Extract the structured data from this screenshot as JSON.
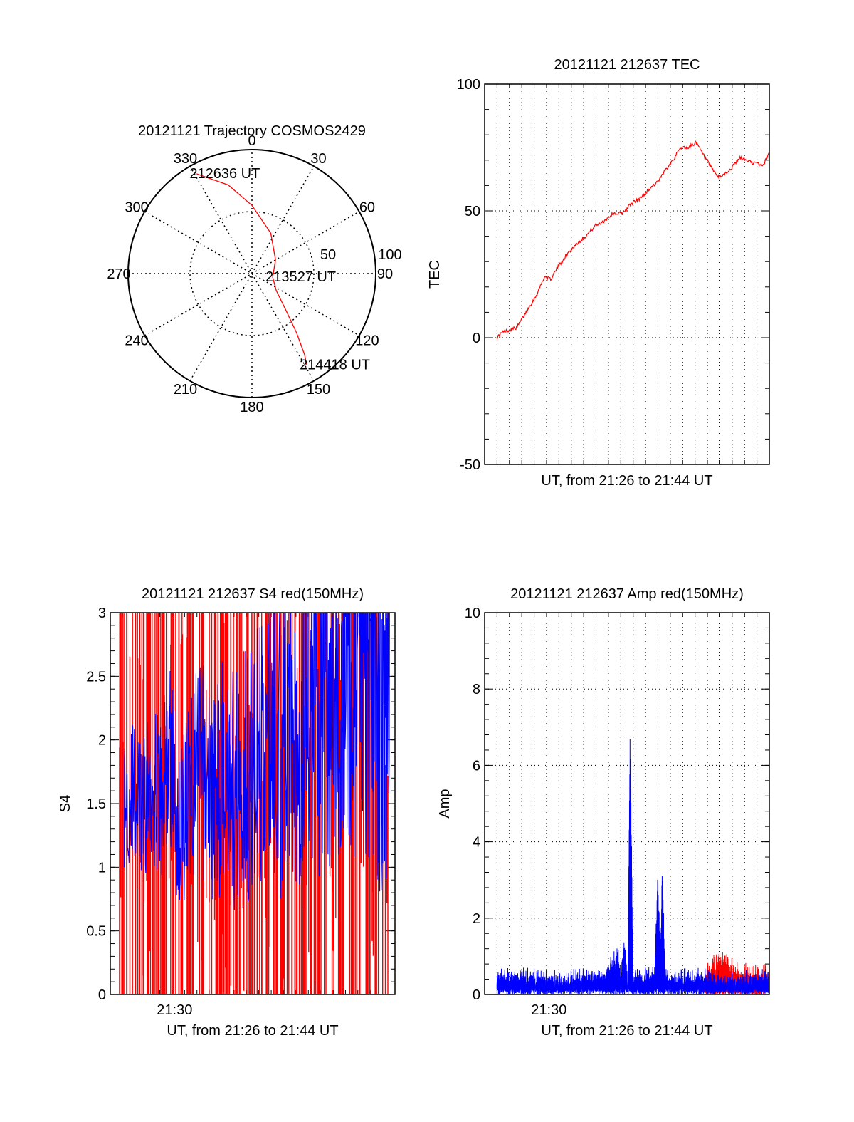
{
  "chart_data": [
    {
      "type": "polar",
      "title": "20121121 Trajectory COSMOS2429",
      "azimuth_labels": [
        "0",
        "30",
        "60",
        "90",
        "120",
        "150",
        "180",
        "210",
        "240",
        "270",
        "300",
        "330"
      ],
      "radial_ticks": [
        50,
        100
      ],
      "radial_max": 100,
      "series": [
        {
          "color": "#ff0000",
          "points": [
            {
              "az": 331,
              "r": 92
            },
            {
              "az": 345,
              "r": 74
            },
            {
              "az": 0,
              "r": 55
            },
            {
              "az": 25,
              "r": 36
            },
            {
              "az": 60,
              "r": 22
            },
            {
              "az": 100,
              "r": 17
            },
            {
              "az": 125,
              "r": 24
            },
            {
              "az": 137,
              "r": 40
            },
            {
              "az": 143,
              "r": 60
            },
            {
              "az": 147,
              "r": 78
            },
            {
              "az": 149,
              "r": 86
            }
          ]
        }
      ],
      "annotations": [
        {
          "text": "212636 UT",
          "az": 331,
          "r": 92
        },
        {
          "text": "213527 UT",
          "az": 100,
          "r": 17
        },
        {
          "text": "214418 UT",
          "az": 149,
          "r": 86
        }
      ]
    },
    {
      "type": "line",
      "title": "20121121 212637 TEC",
      "xlabel": "UT, from 21:26 to 21:44 UT",
      "ylabel": "TEC",
      "xlim": [
        21.43,
        21.74
      ],
      "ylim": [
        -50,
        100
      ],
      "yticks": [
        "-50",
        "0",
        "50",
        "100"
      ],
      "grid": true,
      "series": [
        {
          "color": "#ff0000",
          "x": [
            21.4433,
            21.449,
            21.4567,
            21.465,
            21.475,
            21.4867,
            21.495,
            21.5017,
            21.51,
            21.52,
            21.53,
            21.54,
            21.55,
            21.56,
            21.57,
            21.58,
            21.59,
            21.6,
            21.61,
            21.62,
            21.6283,
            21.6367,
            21.6433,
            21.6517,
            21.66,
            21.6683,
            21.675,
            21.685,
            21.6967,
            21.7083,
            21.7217,
            21.7333,
            21.74
          ],
          "y": [
            0,
            2,
            3,
            4,
            10,
            17,
            24,
            23,
            28,
            33,
            37,
            40,
            44,
            46,
            49,
            49,
            53,
            55,
            59,
            62,
            67,
            71,
            75,
            75,
            77,
            72,
            68,
            63,
            66,
            71,
            69,
            68,
            73
          ]
        }
      ]
    },
    {
      "type": "line",
      "title": "20121121 212637 S4 red(150MHz)",
      "xlabel": "UT, from 21:26 to 21:44 UT",
      "ylabel": "S4",
      "xlim": [
        21.43,
        21.74
      ],
      "ylim": [
        0,
        3
      ],
      "yticks": [
        "0",
        "0.5",
        "1",
        "1.5",
        "2",
        "2.5",
        "3"
      ],
      "xtick_labels": [
        {
          "x": 21.5,
          "label": "21:30"
        }
      ],
      "series": [
        {
          "color": "#ff0000",
          "note": "dense vertical traces spanning 0–3",
          "x": [
            21.44,
            21.46,
            21.48,
            21.5,
            21.52,
            21.54,
            21.56,
            21.58,
            21.6,
            21.62,
            21.64,
            21.66,
            21.68,
            21.7,
            21.72,
            21.735
          ],
          "y": [
            1.5,
            1.7,
            1.6,
            1.8,
            1.5,
            1.4,
            1.7,
            1.6,
            1.9,
            2.2,
            2.0,
            2.3,
            2.1,
            2.4,
            2.6,
            2.5
          ]
        },
        {
          "color": "#0000ff",
          "x": [
            21.445,
            21.455,
            21.465,
            21.475,
            21.485,
            21.495,
            21.505,
            21.515,
            21.525,
            21.535,
            21.545,
            21.555,
            21.565,
            21.575,
            21.585,
            21.595,
            21.605,
            21.615,
            21.625,
            21.635,
            21.645,
            21.655,
            21.665,
            21.675,
            21.685,
            21.695,
            21.705,
            21.715,
            21.725,
            21.735
          ],
          "y": [
            1.5,
            1.6,
            1.4,
            1.7,
            1.5,
            1.9,
            1.3,
            1.6,
            1.8,
            1.7,
            1.5,
            1.9,
            1.6,
            1.8,
            1.7,
            1.9,
            2.1,
            1.9,
            2.2,
            2.0,
            2.3,
            2.2,
            2.4,
            2.3,
            2.6,
            2.4,
            2.5,
            2.6,
            2.3,
            2.4
          ]
        }
      ]
    },
    {
      "type": "line",
      "title": "20121121 212637 Amp red(150MHz)",
      "xlabel": "UT, from 21:26 to 21:44 UT",
      "ylabel": "Amp",
      "xlim": [
        21.43,
        21.74
      ],
      "ylim": [
        0,
        10
      ],
      "yticks": [
        "0",
        "2",
        "4",
        "6",
        "8",
        "10"
      ],
      "xtick_labels": [
        {
          "x": 21.5,
          "label": "21:30"
        }
      ],
      "grid": true,
      "series": [
        {
          "color": "#0000ff",
          "x": [
            21.4433,
            21.47,
            21.5,
            21.53,
            21.56,
            21.575,
            21.578,
            21.582,
            21.586,
            21.5883,
            21.5917,
            21.6,
            21.615,
            21.6183,
            21.6217,
            21.6233,
            21.6267,
            21.6317,
            21.66,
            21.7,
            21.74
          ],
          "y": [
            0.4,
            0.45,
            0.35,
            0.4,
            0.45,
            1.0,
            0.4,
            1.3,
            0.4,
            6.8,
            0.4,
            0.4,
            0.5,
            2.9,
            1.0,
            3.2,
            0.4,
            0.4,
            0.4,
            0.35,
            0.4
          ]
        },
        {
          "color": "#ff0000",
          "x": [
            21.67,
            21.68,
            21.69,
            21.7,
            21.71,
            21.72,
            21.73,
            21.74
          ],
          "y": [
            0.4,
            0.7,
            0.8,
            0.6,
            0.5,
            0.45,
            0.4,
            0.5
          ]
        }
      ]
    }
  ]
}
